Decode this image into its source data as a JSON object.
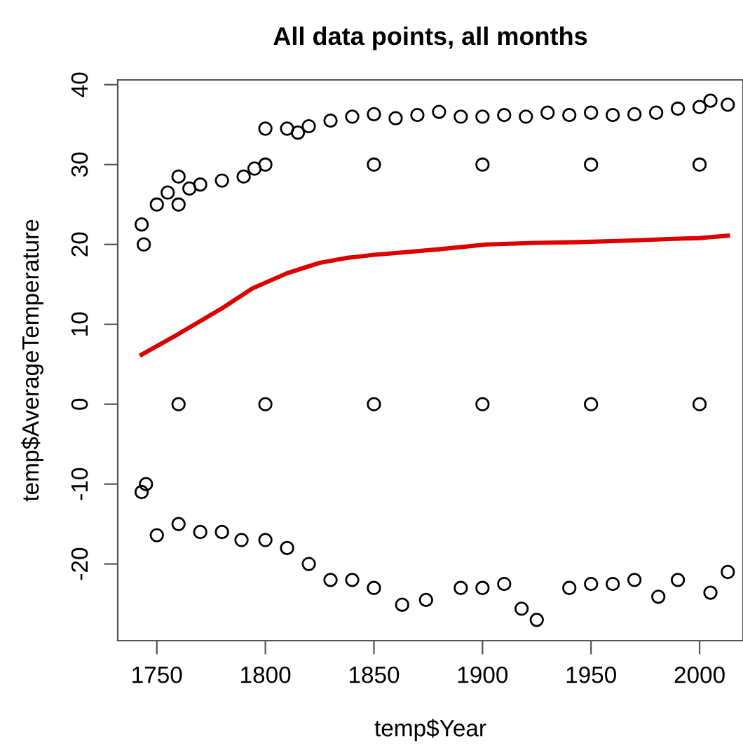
{
  "chart_data": {
    "type": "scatter",
    "title": "All data points, all months",
    "xlabel": "temp$Year",
    "ylabel": "temp$AverageTemperature",
    "xlim": [
      1732,
      2020
    ],
    "ylim": [
      -29.6,
      40.6
    ],
    "xticks": [
      1750,
      1800,
      1850,
      1900,
      1950,
      2000
    ],
    "yticks": [
      -20,
      -10,
      0,
      10,
      20,
      30,
      40
    ],
    "grid": false,
    "legend": false,
    "marker": "circle",
    "series": [
      {
        "color": "#000000",
        "x": [
          1743,
          1744,
          1750,
          1755,
          1760,
          1765,
          1770,
          1780,
          1790,
          1795,
          1800,
          1810,
          1815,
          1820,
          1830,
          1840,
          1850,
          1860,
          1870,
          1880,
          1890,
          1900,
          1910,
          1920,
          1930,
          1940,
          1950,
          1960,
          1970,
          1980,
          1990,
          2000,
          2005,
          2013,
          1743,
          1745,
          1750,
          1760,
          1770,
          1780,
          1789,
          1800,
          1810,
          1820,
          1830,
          1840,
          1850,
          1863,
          1874,
          1890,
          1900,
          1910,
          1918,
          1925,
          1940,
          1950,
          1960,
          1970,
          1981,
          1990,
          2005,
          2013,
          1760,
          1800,
          1850,
          1900,
          1950,
          2000,
          1760,
          1800,
          1850,
          1900,
          1950,
          2000
        ],
        "values": [
          22.5,
          20,
          25,
          26.5,
          28.5,
          27,
          27.5,
          28,
          28.5,
          29.5,
          34.5,
          34.5,
          34,
          34.8,
          35.5,
          36,
          36.3,
          35.8,
          36.2,
          36.6,
          36,
          36,
          36.2,
          36,
          36.5,
          36.2,
          36.5,
          36.2,
          36.3,
          36.5,
          37,
          37.2,
          38,
          37.5,
          -11,
          -10,
          -16.4,
          -15,
          -16,
          -16,
          -17,
          -17,
          -18,
          -20,
          -22,
          -22,
          -23,
          -25.1,
          -24.5,
          -23,
          -23,
          -22.5,
          -25.6,
          -27,
          -23,
          -22.5,
          -22.5,
          -22,
          -24.1,
          -22,
          -23.6,
          -21,
          0,
          0,
          0,
          0,
          0,
          0,
          25,
          30,
          30,
          30,
          30,
          30
        ]
      },
      {
        "type": "line",
        "color": "#dd0000",
        "marker": "none",
        "line_style": "solid",
        "x": [
          1743,
          1760,
          1780,
          1794,
          1810,
          1825,
          1837,
          1850,
          1859,
          1880,
          1902,
          1925,
          1945,
          1970,
          1988,
          2000,
          2013
        ],
        "values": [
          6.2,
          8.8,
          12,
          14.5,
          16.4,
          17.7,
          18.3,
          18.7,
          18.9,
          19.4,
          20.0,
          20.2,
          20.3,
          20.5,
          20.7,
          20.8,
          21.1
        ]
      }
    ]
  }
}
